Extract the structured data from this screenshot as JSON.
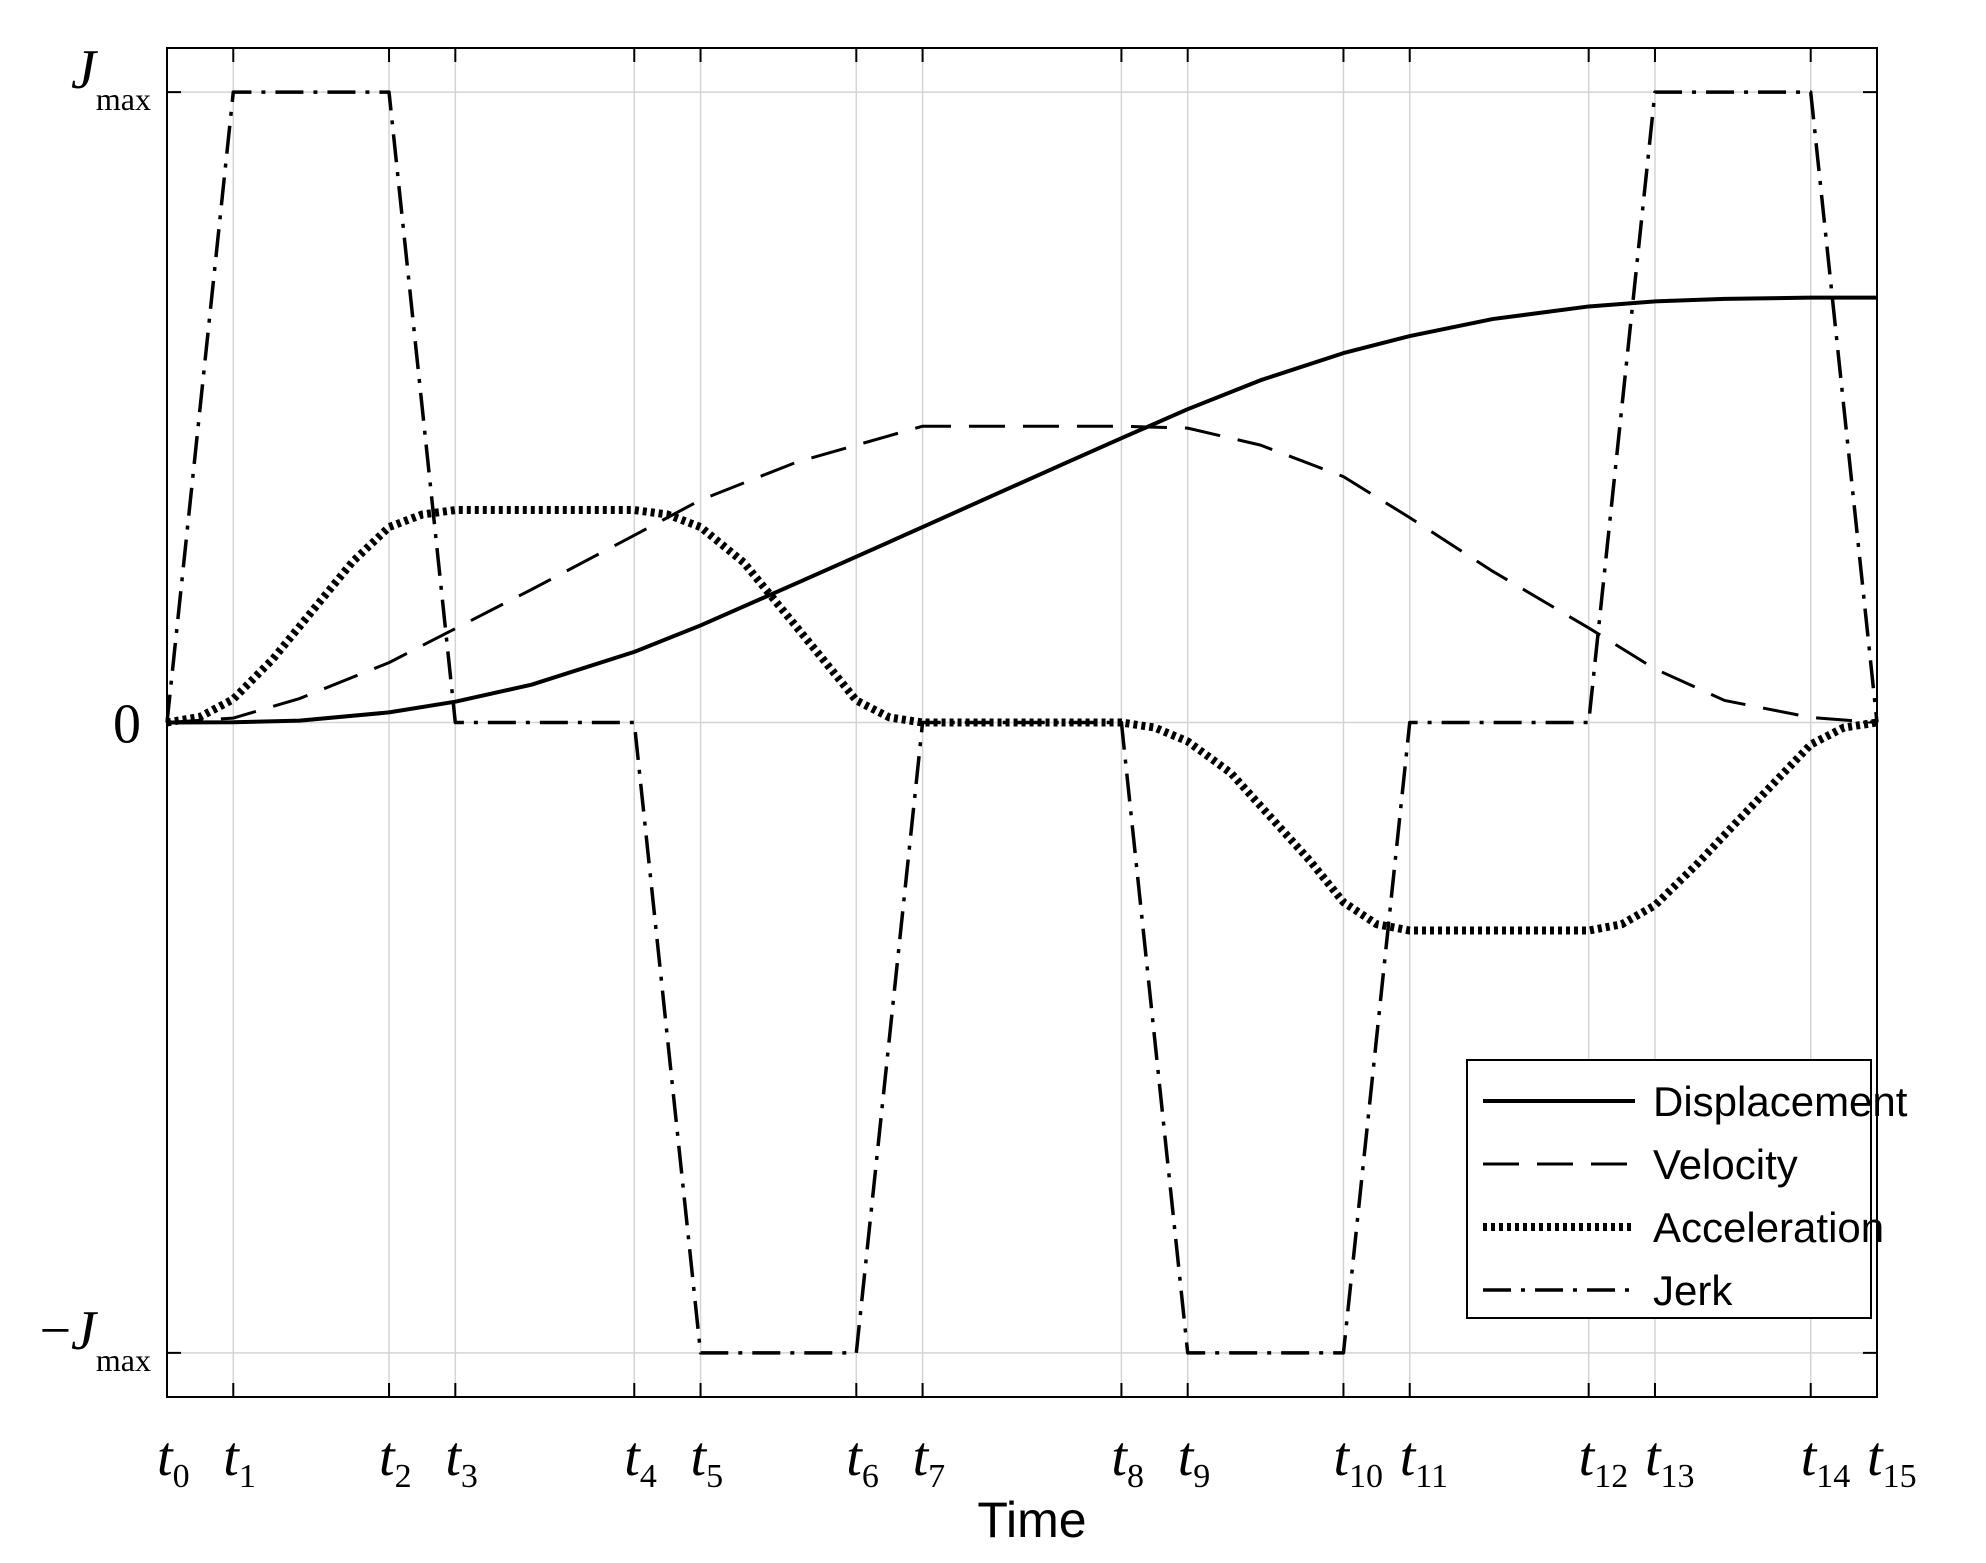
{
  "chart_data": {
    "type": "line",
    "xlabel": "Time",
    "x_ticks": [
      {
        "sym": "t",
        "sub": "0",
        "x": 0
      },
      {
        "sym": "t",
        "sub": "1",
        "x": 1
      },
      {
        "sym": "t",
        "sub": "2",
        "x": 3.35
      },
      {
        "sym": "t",
        "sub": "3",
        "x": 4.35
      },
      {
        "sym": "t",
        "sub": "4",
        "x": 7.05
      },
      {
        "sym": "t",
        "sub": "5",
        "x": 8.05
      },
      {
        "sym": "t",
        "sub": "6",
        "x": 10.4
      },
      {
        "sym": "t",
        "sub": "7",
        "x": 11.4
      },
      {
        "sym": "t",
        "sub": "8",
        "x": 14.4
      },
      {
        "sym": "t",
        "sub": "9",
        "x": 15.4
      },
      {
        "sym": "t",
        "sub": "10",
        "x": 17.75
      },
      {
        "sym": "t",
        "sub": "11",
        "x": 18.75
      },
      {
        "sym": "t",
        "sub": "12",
        "x": 21.45
      },
      {
        "sym": "t",
        "sub": "13",
        "x": 22.45
      },
      {
        "sym": "t",
        "sub": "14",
        "x": 24.8
      },
      {
        "sym": "t",
        "sub": "15",
        "x": 25.8
      }
    ],
    "y_ticks": [
      {
        "main": "J",
        "sub": "max",
        "sign": "",
        "y": 1
      },
      {
        "main": "0",
        "sub": "",
        "sign": "",
        "y": 0
      },
      {
        "main": "J",
        "sub": "max",
        "sign": "−",
        "y": -1
      }
    ],
    "xlim": [
      0,
      25.8
    ],
    "ylim": [
      -1.07,
      1.07
    ],
    "grid": true,
    "legend_position": "bottom-right",
    "series": [
      {
        "name": "Displacement",
        "style": "solid",
        "x": [
          0,
          1,
          2,
          3.35,
          4.35,
          5.5,
          7.05,
          8.05,
          9.5,
          10.4,
          11.4,
          12.5,
          13.5,
          14.4,
          15.4,
          16.5,
          17.75,
          18.75,
          20,
          21.45,
          22.45,
          23.5,
          24.8,
          25.8
        ],
        "values": [
          0,
          0.0003,
          0.003,
          0.016,
          0.033,
          0.06,
          0.112,
          0.154,
          0.221,
          0.263,
          0.31,
          0.362,
          0.409,
          0.451,
          0.497,
          0.543,
          0.586,
          0.613,
          0.64,
          0.66,
          0.668,
          0.672,
          0.674,
          0.674
        ]
      },
      {
        "name": "Velocity",
        "style": "dashed",
        "x": [
          0,
          1,
          2,
          3.35,
          4.35,
          5.5,
          7.05,
          8.05,
          9.5,
          10.4,
          11.4,
          14.4,
          15.4,
          16.5,
          17.75,
          18.75,
          20,
          21.45,
          22.45,
          23.5,
          24.8,
          25.8
        ],
        "values": [
          0,
          0.007,
          0.038,
          0.095,
          0.149,
          0.211,
          0.297,
          0.353,
          0.413,
          0.44,
          0.47,
          0.47,
          0.467,
          0.44,
          0.39,
          0.325,
          0.24,
          0.15,
          0.085,
          0.035,
          0.008,
          0
        ]
      },
      {
        "name": "Acceleration",
        "style": "dotted",
        "x": [
          0,
          0.5,
          1,
          1.6,
          2.2,
          2.8,
          3.35,
          3.85,
          4.35,
          7.05,
          7.55,
          8.05,
          8.7,
          9.3,
          9.9,
          10.4,
          10.9,
          11.4,
          14.4,
          14.9,
          15.4,
          16.05,
          16.65,
          17.25,
          17.75,
          18.25,
          18.75,
          21.45,
          21.95,
          22.45,
          23.1,
          23.7,
          24.3,
          24.8,
          25.3,
          25.8
        ],
        "values": [
          0,
          0.009,
          0.037,
          0.101,
          0.178,
          0.255,
          0.31,
          0.33,
          0.337,
          0.337,
          0.33,
          0.31,
          0.254,
          0.177,
          0.1,
          0.035,
          0.008,
          0,
          0,
          -0.008,
          -0.03,
          -0.08,
          -0.15,
          -0.22,
          -0.285,
          -0.32,
          -0.33,
          -0.33,
          -0.32,
          -0.29,
          -0.223,
          -0.156,
          -0.09,
          -0.035,
          -0.008,
          0
        ]
      },
      {
        "name": "Jerk",
        "style": "dashdot",
        "x": [
          0,
          1,
          3.35,
          4.35,
          7.05,
          8.05,
          10.4,
          11.4,
          14.4,
          15.4,
          17.75,
          18.75,
          21.45,
          22.45,
          24.8,
          25.8
        ],
        "values": [
          0,
          1,
          1,
          0,
          0,
          -1,
          -1,
          0,
          0,
          -1,
          -1,
          0,
          0,
          1,
          1,
          0
        ]
      }
    ]
  },
  "legend": {
    "items": [
      {
        "name": "Displacement",
        "style": "solid"
      },
      {
        "name": "Velocity",
        "style": "dashed"
      },
      {
        "name": "Acceleration",
        "style": "dotted"
      },
      {
        "name": "Jerk",
        "style": "dashdot"
      }
    ]
  }
}
